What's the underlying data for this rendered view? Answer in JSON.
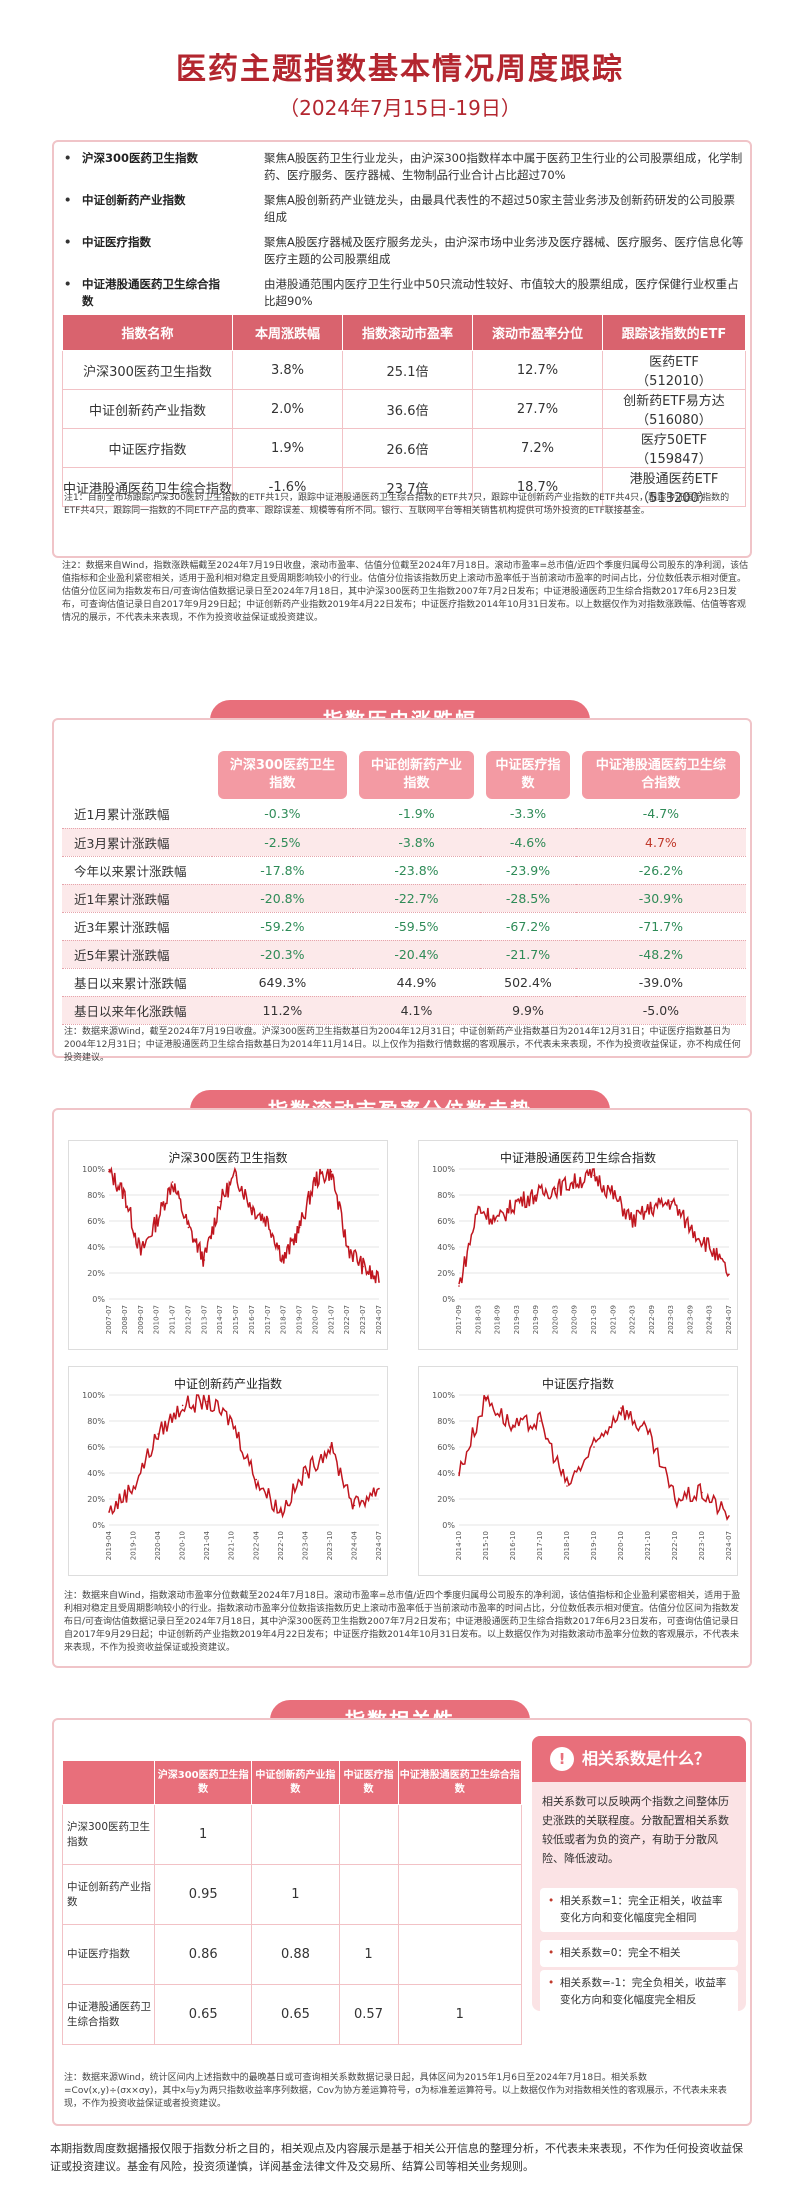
{
  "header": {
    "title": "医药主题指数基本情况周度跟踪",
    "subtitle": "（2024年7月15日-19日）"
  },
  "descriptions": [
    {
      "name": "沪深300医药卫生指数",
      "text": "聚焦A股医药卫生行业龙头，由沪深300指数样本中属于医药卫生行业的公司股票组成，化学制药、医疗服务、医疗器械、生物制品行业合计占比超过70%"
    },
    {
      "name": "中证创新药产业指数",
      "text": "聚焦A股创新药产业链龙头，由最具代表性的不超过50家主营业务涉及创新药研发的公司股票组成"
    },
    {
      "name": "中证医疗指数",
      "text": "聚焦A股医疗器械及医疗服务龙头，由沪深市场中业务涉及医疗器械、医疗服务、医疗信息化等医疗主题的公司股票组成"
    },
    {
      "name": "中证港股通医药卫生综合指数",
      "text": "由港股通范围内医疗卫生行业中50只流动性较好、市值较大的股票组成，医疗保健行业权重占比超90%"
    }
  ],
  "table1": {
    "headers": [
      "指数名称",
      "本周涨跌幅",
      "指数滚动市盈率",
      "滚动市盈率分位",
      "跟踪该指数的ETF"
    ],
    "rows": [
      {
        "name": "沪深300医药卫生指数",
        "chg": "3.8%",
        "pe": "25.1倍",
        "pct": "12.7%",
        "etf": "医药ETF",
        "code": "（512010）"
      },
      {
        "name": "中证创新药产业指数",
        "chg": "2.0%",
        "pe": "36.6倍",
        "pct": "27.7%",
        "etf": "创新药ETF易方达",
        "code": "（516080）"
      },
      {
        "name": "中证医疗指数",
        "chg": "1.9%",
        "pe": "26.6倍",
        "pct": "7.2%",
        "etf": "医疗50ETF",
        "code": "（159847）"
      },
      {
        "name": "中证港股通医药卫生综合指数",
        "chg": "-1.6%",
        "pe": "23.7倍",
        "pct": "18.7%",
        "etf": "港股通医药ETF",
        "code": "（513200）"
      }
    ],
    "note1": "注1：目前全市场跟踪沪深300医药卫生指数的ETF共1只，跟踪中证港股通医药卫生综合指数的ETF共7只，跟踪中证创新药产业指数的ETF共4只，跟踪中证医疗指数的ETF共4只，跟踪同一指数的不同ETF产品的费率、跟踪误差、规模等有所不同。银行、互联网平台等相关销售机构提供可场外投资的ETF联接基金。",
    "note2": "注2：数据来自Wind，指数涨跌幅截至2024年7月19日收盘，滚动市盈率、估值分位截至2024年7月18日。滚动市盈率=总市值/近四个季度归属母公司股东的净利润，该估值指标和企业盈利紧密相关，适用于盈利相对稳定且受周期影响较小的行业。估值分位指该指数历史上滚动市盈率低于当前滚动市盈率的时间占比，分位数低表示相对便宜。估值分位区间为指数发布日/可查询估值数据记录日至2024年7月18日，其中沪深300医药卫生指数2007年7月2日发布；中证港股通医药卫生综合指数2017年6月23日发布，可查询估值记录日自2017年9月29日起；中证创新药产业指数2019年4月22日发布；中证医疗指数2014年10月31日发布。以上数据仅作为对指数涨跌幅、估值等客观情况的展示，不代表未来表现，不作为投资收益保证或投资建议。"
  },
  "history": {
    "banner": "指数历史涨跌幅",
    "headers": [
      "沪深300医药卫生指数",
      "中证创新药产业指数",
      "中证医疗指数",
      "中证港股通医药卫生综合指数"
    ],
    "rows": [
      {
        "label": "近1月累计涨跌幅",
        "v": [
          "-0.3%",
          "-1.9%",
          "-3.3%",
          "-4.7%"
        ]
      },
      {
        "label": "近3月累计涨跌幅",
        "v": [
          "-2.5%",
          "-3.8%",
          "-4.6%",
          "4.7%"
        ]
      },
      {
        "label": "今年以来累计涨跌幅",
        "v": [
          "-17.8%",
          "-23.8%",
          "-23.9%",
          "-26.2%"
        ]
      },
      {
        "label": "近1年累计涨跌幅",
        "v": [
          "-20.8%",
          "-22.7%",
          "-28.5%",
          "-30.9%"
        ]
      },
      {
        "label": "近3年累计涨跌幅",
        "v": [
          "-59.2%",
          "-59.5%",
          "-67.2%",
          "-71.7%"
        ]
      },
      {
        "label": "近5年累计涨跌幅",
        "v": [
          "-20.3%",
          "-20.4%",
          "-21.7%",
          "-48.2%"
        ]
      },
      {
        "label": "基日以来累计涨跌幅",
        "v": [
          "649.3%",
          "44.9%",
          "502.4%",
          "-39.0%"
        ]
      },
      {
        "label": "基日以来年化涨跌幅",
        "v": [
          "11.2%",
          "4.1%",
          "9.9%",
          "-5.0%"
        ]
      }
    ],
    "note": "注：数据来源Wind，截至2024年7月19日收盘。沪深300医药卫生指数基日为2004年12月31日；中证创新药产业指数基日为2014年12月31日；中证医疗指数基日为2004年12月31日；中证港股通医药卫生综合指数基日为2014年11月14日。以上仅作为指数行情数据的客观展示，不代表未来表现，不作为投资收益保证，亦不构成任何投资建议。"
  },
  "pe_section": {
    "banner": "指数滚动市盈率分位数走势",
    "note": "注：数据来自Wind，指数滚动市盈率分位数截至2024年7月18日。滚动市盈率=总市值/近四个季度归属母公司股东的净利润，该估值指标和企业盈利紧密相关，适用于盈利相对稳定且受周期影响较小的行业。指数滚动市盈率分位数指该指数历史上滚动市盈率低于当前滚动市盈率的时间占比，分位数低表示相对便宜。估值分位区间为指数发布日/可查询估值数据记录日至2024年7月18日，其中沪深300医药卫生指数2007年7月2日发布；中证港股通医药卫生综合指数2017年6月23日发布，可查询估值记录日自2017年9月29日起；中证创新药产业指数2019年4月22日发布；中证医疗指数2014年10月31日发布。以上数据仅作为对指数滚动市盈率分位数的客观展示，不代表未来表现，不作为投资收益保证或投资建议。"
  },
  "chart_data": [
    {
      "type": "line",
      "title": "沪深300医药卫生指数",
      "ylim": [
        0,
        100
      ],
      "yticks": [
        "0%",
        "20%",
        "40%",
        "60%",
        "80%",
        "100%"
      ],
      "x": [
        "2007-07",
        "2008-07",
        "2009-07",
        "2010-07",
        "2011-07",
        "2012-07",
        "2013-07",
        "2014-07",
        "2015-07",
        "2016-07",
        "2017-07",
        "2018-07",
        "2019-07",
        "2020-07",
        "2021-07",
        "2022-07",
        "2023-07",
        "2024-07"
      ],
      "values": [
        98,
        80,
        35,
        60,
        90,
        55,
        30,
        75,
        95,
        70,
        60,
        30,
        55,
        92,
        98,
        40,
        25,
        13
      ],
      "color": "#c0161f"
    },
    {
      "type": "line",
      "title": "中证港股通医药卫生综合指数",
      "ylim": [
        0,
        100
      ],
      "yticks": [
        "0%",
        "20%",
        "40%",
        "60%",
        "80%",
        "100%"
      ],
      "x": [
        "2017-09",
        "2018-03",
        "2018-09",
        "2019-03",
        "2019-09",
        "2020-03",
        "2020-09",
        "2021-03",
        "2021-09",
        "2022-03",
        "2022-09",
        "2023-03",
        "2023-09",
        "2024-03",
        "2024-07"
      ],
      "values": [
        10,
        70,
        60,
        75,
        80,
        85,
        90,
        95,
        80,
        60,
        70,
        75,
        55,
        40,
        19
      ],
      "color": "#c0161f"
    },
    {
      "type": "line",
      "title": "中证创新药产业指数",
      "ylim": [
        0,
        100
      ],
      "yticks": [
        "0%",
        "20%",
        "40%",
        "60%",
        "80%",
        "100%"
      ],
      "x": [
        "2019-04",
        "2019-10",
        "2020-04",
        "2020-10",
        "2021-04",
        "2021-10",
        "2022-04",
        "2022-10",
        "2023-04",
        "2023-10",
        "2024-04",
        "2024-07"
      ],
      "values": [
        10,
        30,
        70,
        92,
        95,
        80,
        35,
        10,
        40,
        60,
        15,
        28
      ],
      "color": "#c0161f"
    },
    {
      "type": "line",
      "title": "中证医疗指数",
      "ylim": [
        0,
        100
      ],
      "yticks": [
        "0%",
        "20%",
        "40%",
        "60%",
        "80%",
        "100%"
      ],
      "x": [
        "2014-10",
        "2015-10",
        "2016-10",
        "2017-10",
        "2018-10",
        "2019-10",
        "2020-10",
        "2021-10",
        "2022-10",
        "2023-10",
        "2024-07"
      ],
      "values": [
        40,
        98,
        75,
        80,
        30,
        60,
        90,
        70,
        20,
        25,
        7
      ],
      "color": "#c0161f"
    }
  ],
  "correlation": {
    "banner": "指数相关性",
    "headers": [
      "沪深300医药卫生指数",
      "中证创新药产业指数",
      "中证医疗指数",
      "中证港股通医药卫生综合指数"
    ],
    "rows": [
      {
        "label": "沪深300医药卫生指数",
        "v": [
          "1",
          "",
          "",
          ""
        ]
      },
      {
        "label": "中证创新药产业指数",
        "v": [
          "0.95",
          "1",
          "",
          ""
        ]
      },
      {
        "label": "中证医疗指数",
        "v": [
          "0.86",
          "0.88",
          "1",
          ""
        ]
      },
      {
        "label": "中证港股通医药卫生综合指数",
        "v": [
          "0.65",
          "0.65",
          "0.57",
          "1"
        ]
      }
    ],
    "box_title": "相关系数是什么？",
    "box_body": "相关系数可以反映两个指数之间整体历史涨跌的关联程度。分散配置相关系数较低或者为负的资产，有助于分散风险、降低波动。",
    "items": [
      "相关系数=1：完全正相关，收益率变化方向和变化幅度完全相同",
      "相关系数=0：完全不相关",
      "相关系数=-1：完全负相关，收益率变化方向和变化幅度完全相反"
    ],
    "note": "注：数据来源Wind，统计区间内上述指数中的最晚基日或可查询相关系数数据记录日起，具体区间为2015年1月6日至2024年7月18日。相关系数=Cov(x,y)÷(σx×σy)，其中x与y为两只指数收益率序列数据，Cov为协方差运算符号，σ为标准差运算符号。以上数据仅作为对指数相关性的客观展示，不代表未来表现，不作为投资收益保证或者投资建议。"
  },
  "footer": "本期指数周度数据播报仅限于指数分析之目的，相关观点及内容展示是基于相关公开信息的整理分析，不代表未来表现，不作为任何投资收益保证或投资建议。基金有风险，投资须谨慎，详阅基金法律文件及交易所、结算公司等相关业务规则。"
}
